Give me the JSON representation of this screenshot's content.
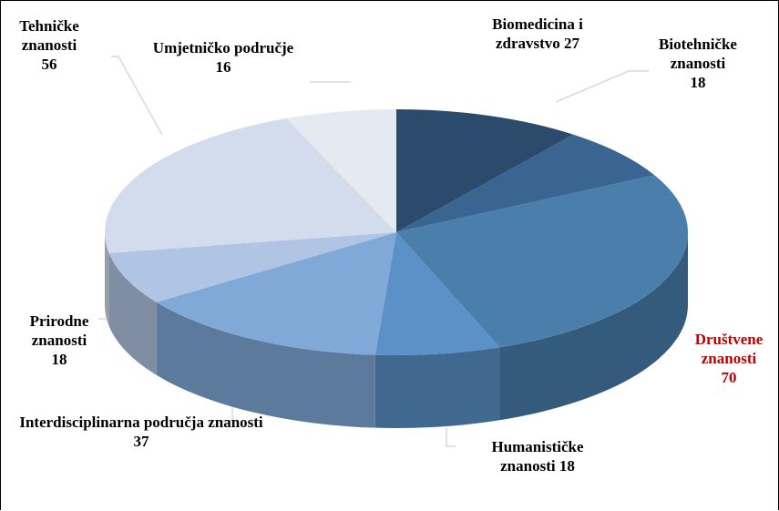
{
  "chart_data": {
    "type": "pie3d",
    "categories": [
      "Biomedicina i zdravstvo",
      "Biotehničke znanosti",
      "Društvene znanosti",
      "Humanističke znanosti",
      "Interdisciplinarna područja znanosti",
      "Prirodne znanosti",
      "Tehničke znanosti",
      "Umjetničko područje"
    ],
    "values": [
      27,
      18,
      70,
      18,
      37,
      18,
      56,
      16
    ],
    "colors": [
      "#2b4a6c",
      "#3a6590",
      "#4a7fac",
      "#5a92c8",
      "#80a9d7",
      "#b0c5e3",
      "#d3dced",
      "#e4e9f2"
    ],
    "label_colors": [
      "#000000",
      "#000000",
      "#c00000",
      "#000000",
      "#000000",
      "#000000",
      "#000000",
      "#000000"
    ]
  }
}
